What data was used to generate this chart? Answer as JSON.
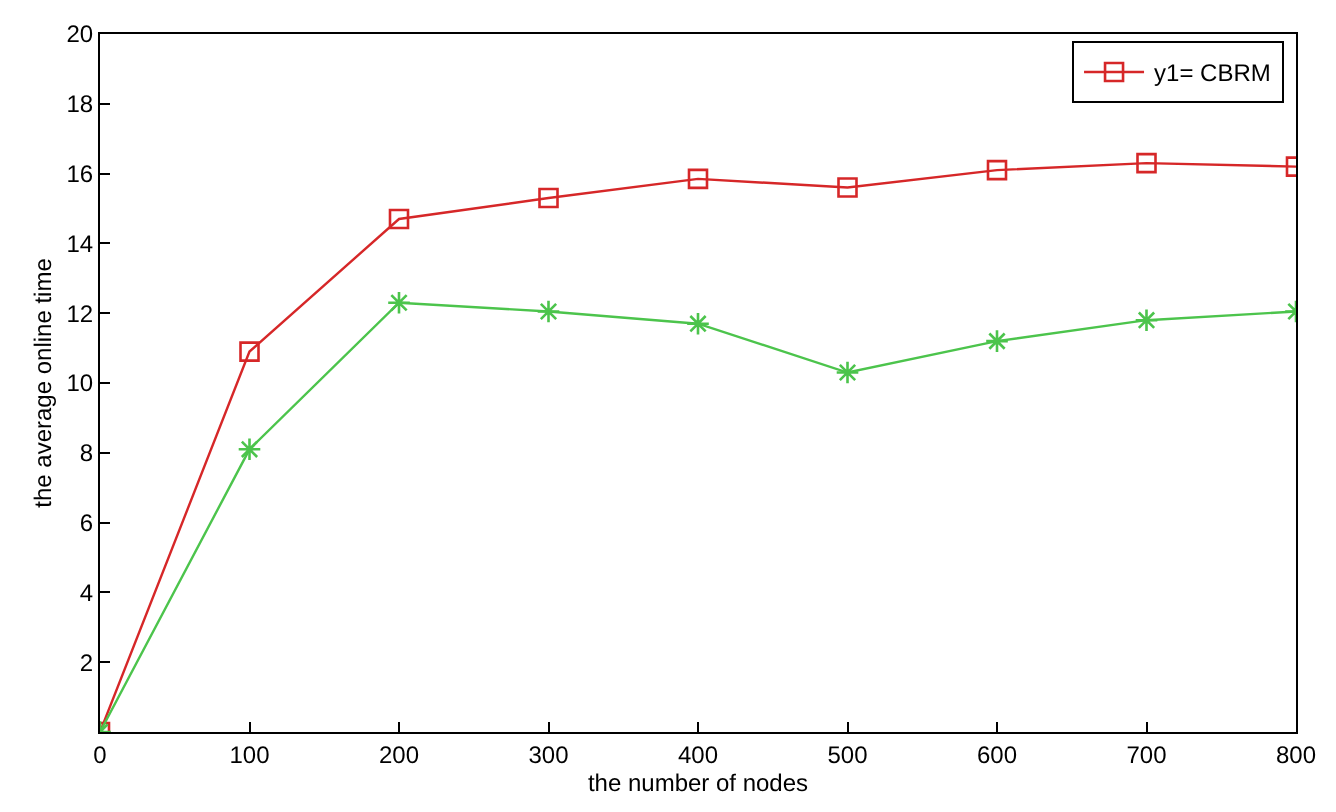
{
  "chart_data": {
    "type": "line",
    "xlabel": "the number of nodes",
    "ylabel": "the average online time",
    "x": [
      0,
      100,
      200,
      300,
      400,
      500,
      600,
      700,
      800
    ],
    "series": [
      {
        "name": "y1= CBRM",
        "color": "#d62728",
        "marker": "square",
        "values": [
          0,
          10.9,
          14.7,
          15.3,
          15.85,
          15.6,
          16.1,
          16.3,
          16.2
        ]
      },
      {
        "color": "#4cc44c",
        "marker": "cross",
        "values": [
          0,
          8.1,
          12.3,
          12.05,
          11.7,
          10.3,
          11.2,
          11.8,
          12.05
        ]
      }
    ],
    "xlim": [
      0,
      800
    ],
    "xticks": [
      0,
      100,
      200,
      300,
      400,
      500,
      600,
      700,
      800
    ],
    "ylim": [
      0,
      20
    ],
    "yticks": [
      {
        "value": 0,
        "label": null
      },
      2,
      4,
      6,
      8,
      10,
      12,
      14,
      16,
      18,
      20
    ],
    "grid": false,
    "legend": "top right"
  }
}
